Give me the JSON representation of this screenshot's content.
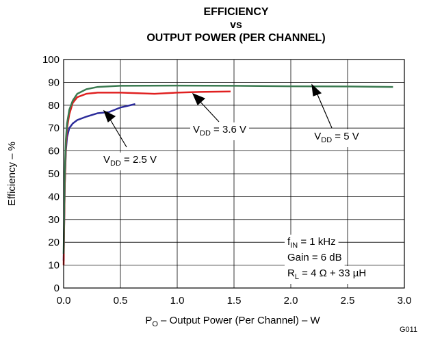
{
  "chart_data": {
    "type": "line",
    "title": [
      "EFFICIENCY",
      "vs",
      "OUTPUT POWER (PER CHANNEL)"
    ],
    "y_label": "Efficiency – %",
    "x_label": {
      "main": "P",
      "sub": "O",
      "rest": " – Output Power (Per Channel) – W"
    },
    "figure_id": "G011",
    "xlim": [
      0,
      3
    ],
    "ylim": [
      0,
      100
    ],
    "xticks": [
      {
        "value": 0,
        "label": "0.0"
      },
      0.5,
      {
        "value": 1,
        "label": "1.0"
      },
      1.5,
      {
        "value": 2,
        "label": "2.0"
      },
      2.5,
      {
        "value": 3,
        "label": "3.0"
      }
    ],
    "yticks": [
      0,
      10,
      20,
      30,
      40,
      50,
      60,
      70,
      80,
      90,
      100
    ],
    "grid": true,
    "series": [
      {
        "color": "#2b2b9a",
        "x": [
          0,
          0.01,
          0.02,
          0.03,
          0.05,
          0.08,
          0.12,
          0.2,
          0.3,
          0.4,
          0.5,
          0.63
        ],
        "values": [
          12,
          45,
          60,
          66,
          70,
          72,
          73.5,
          75,
          76.5,
          77,
          79,
          80.5
        ]
      },
      {
        "color": "#e02020",
        "x": [
          0,
          0.01,
          0.02,
          0.03,
          0.05,
          0.08,
          0.12,
          0.2,
          0.3,
          0.5,
          0.8,
          1.0,
          1.2,
          1.47
        ],
        "values": [
          10,
          45,
          62,
          70,
          76,
          81,
          83.5,
          85,
          85.5,
          85.5,
          85,
          85.5,
          85.8,
          86
        ]
      },
      {
        "color": "#3a7a50",
        "x": [
          0,
          0.01,
          0.02,
          0.03,
          0.05,
          0.08,
          0.12,
          0.2,
          0.3,
          0.5,
          1.0,
          1.5,
          2.0,
          2.5,
          2.9
        ],
        "values": [
          15,
          50,
          65,
          72,
          78,
          82,
          85,
          87,
          88,
          88.5,
          88.6,
          88.5,
          88.3,
          88.2,
          88
        ]
      }
    ],
    "annotations": [
      {
        "main": "V",
        "sub": "DD",
        "rest": " = 2.5 V"
      },
      {
        "main": "V",
        "sub": "DD",
        "rest": " = 3.6 V"
      },
      {
        "main": "V",
        "sub": "DD",
        "rest": " = 5 V"
      }
    ],
    "conditions": [
      {
        "main": "f",
        "sub": "IN",
        "rest": " = 1 kHz"
      },
      {
        "main": "Gain = 6 dB",
        "sub": "",
        "rest": ""
      },
      {
        "main": "R",
        "sub": "L",
        "rest": " = 4 Ω + 33 µH"
      }
    ]
  }
}
